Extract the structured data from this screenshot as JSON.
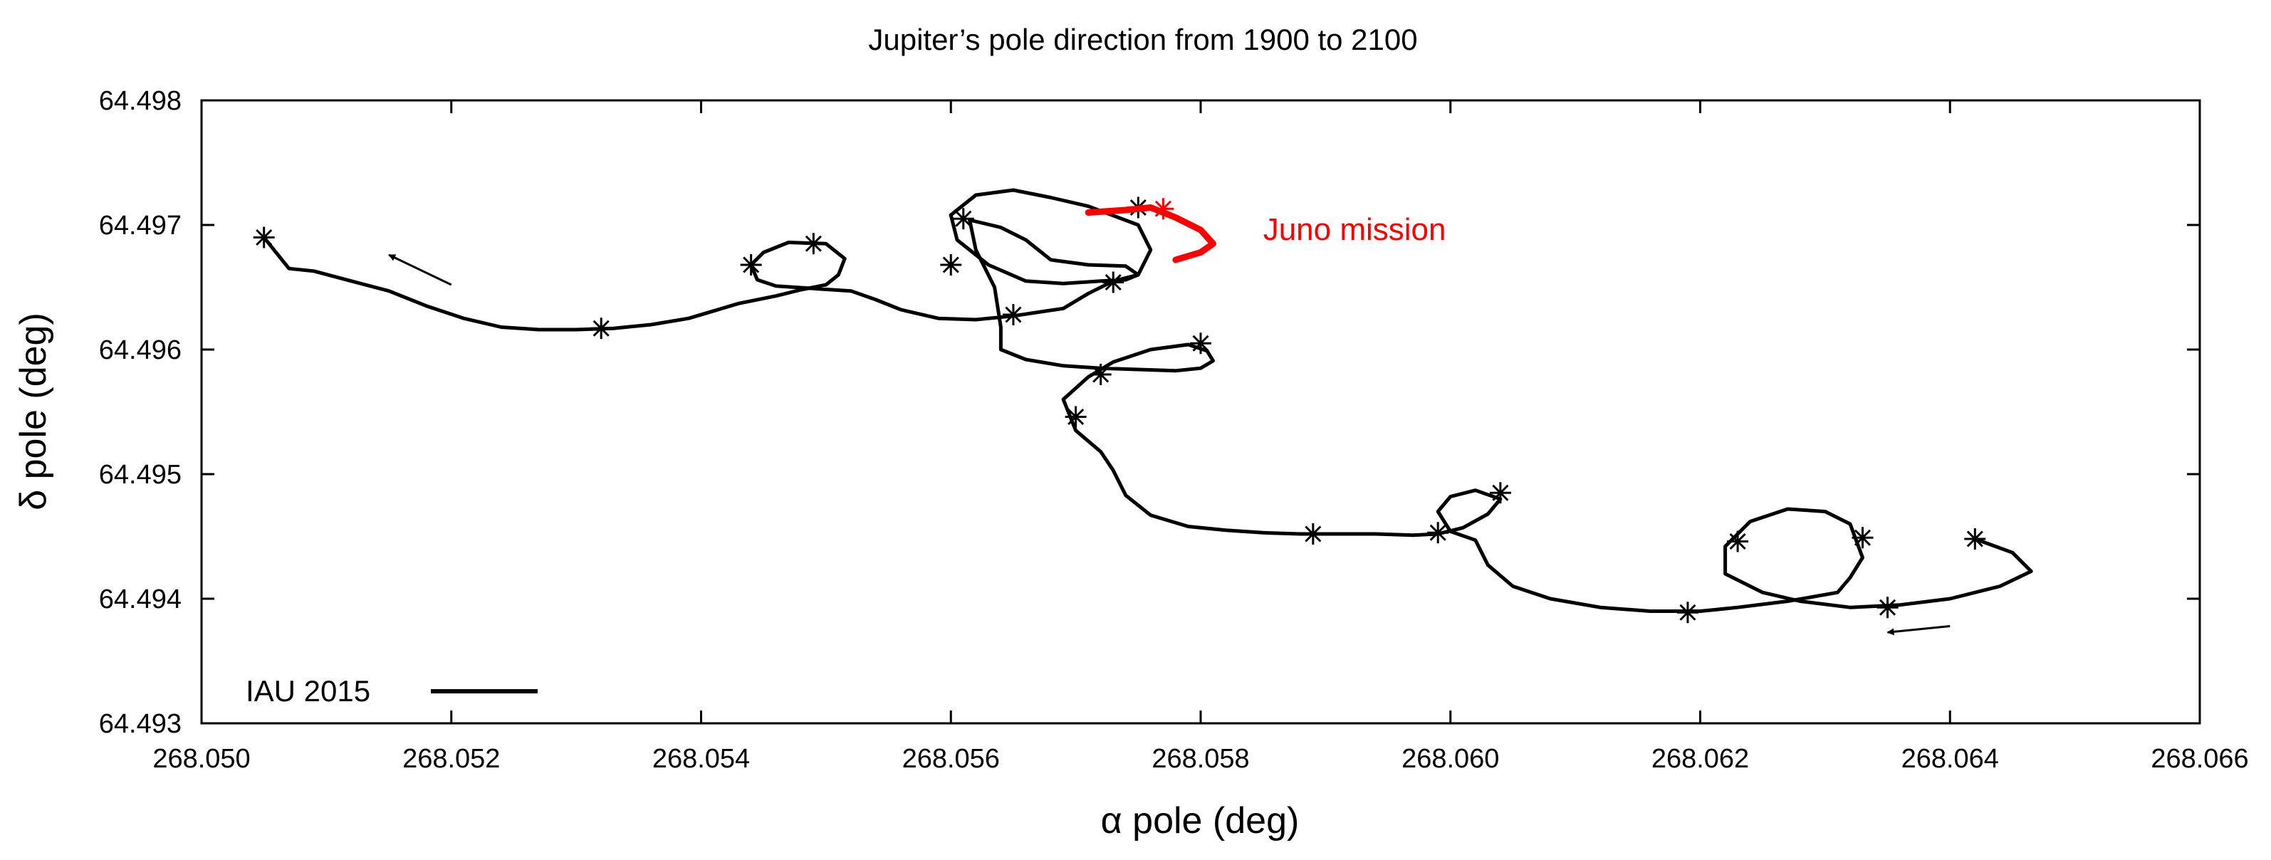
{
  "chart_data": {
    "type": "line",
    "title": "Jupiter’s pole direction from 1900 to 2100",
    "xlabel": "α pole (deg)",
    "ylabel": "δ pole (deg)",
    "xlim": [
      268.05,
      268.066
    ],
    "ylim": [
      64.493,
      64.498
    ],
    "x_ticks": [
      268.05,
      268.052,
      268.054,
      268.056,
      268.058,
      268.06,
      268.062,
      268.064,
      268.066
    ],
    "x_tick_labels": [
      "268.050",
      "268.052",
      "268.054",
      "268.056",
      "268.058",
      "268.060",
      "268.062",
      "268.064",
      "268.066"
    ],
    "y_ticks": [
      64.493,
      64.494,
      64.495,
      64.496,
      64.497,
      64.498
    ],
    "y_tick_labels": [
      "64.493",
      "64.494",
      "64.495",
      "64.496",
      "64.497",
      "64.498"
    ],
    "grid": false,
    "legend_position": "bottom-left",
    "series": [
      {
        "name": "IAU 2015",
        "color": "#000000",
        "line": [
          [
            268.0505,
            64.4969
          ],
          [
            268.0507,
            64.49665
          ],
          [
            268.0509,
            64.49663
          ],
          [
            268.0512,
            64.49655
          ],
          [
            268.0515,
            64.49647
          ],
          [
            268.0518,
            64.49635
          ],
          [
            268.0521,
            64.49625
          ],
          [
            268.0524,
            64.49618
          ],
          [
            268.0527,
            64.49616
          ],
          [
            268.053,
            64.49616
          ],
          [
            268.0533,
            64.49617
          ],
          [
            268.0536,
            64.4962
          ],
          [
            268.0539,
            64.49625
          ],
          [
            268.0541,
            64.49631
          ],
          [
            268.0543,
            64.49637
          ],
          [
            268.0546,
            64.49643
          ],
          [
            268.0548,
            64.49648
          ],
          [
            268.055,
            64.49652
          ],
          [
            268.0551,
            64.4966
          ],
          [
            268.05515,
            64.49673
          ],
          [
            268.055,
            64.49685
          ],
          [
            268.0547,
            64.49686
          ],
          [
            268.0545,
            64.49678
          ],
          [
            268.0544,
            64.49668
          ],
          [
            268.05445,
            64.49656
          ],
          [
            268.0546,
            64.49651
          ],
          [
            268.0549,
            64.49649
          ],
          [
            268.0552,
            64.49647
          ],
          [
            268.0554,
            64.4964
          ],
          [
            268.0556,
            64.49632
          ],
          [
            268.0559,
            64.49625
          ],
          [
            268.0562,
            64.49624
          ],
          [
            268.0565,
            64.49627
          ],
          [
            268.0567,
            64.4963
          ],
          [
            268.0569,
            64.49633
          ],
          [
            268.0571,
            64.49645
          ],
          [
            268.0573,
            64.49655
          ],
          [
            268.0575,
            64.4966
          ],
          [
            268.0576,
            64.4968
          ],
          [
            268.0575,
            64.497
          ],
          [
            268.0571,
            64.49715
          ],
          [
            268.0568,
            64.49722
          ],
          [
            268.0565,
            64.49728
          ],
          [
            268.0562,
            64.49724
          ],
          [
            268.056,
            64.49708
          ],
          [
            268.05605,
            64.49688
          ],
          [
            268.0563,
            64.49668
          ],
          [
            268.0566,
            64.49655
          ],
          [
            268.0569,
            64.49653
          ],
          [
            268.0572,
            64.49655
          ],
          [
            268.0574,
            64.49656
          ],
          [
            268.0575,
            64.4966
          ],
          [
            268.0574,
            64.49667
          ],
          [
            268.0571,
            64.49668
          ],
          [
            268.0568,
            64.49672
          ],
          [
            268.0566,
            64.49688
          ],
          [
            268.0564,
            64.49698
          ],
          [
            268.05615,
            64.49704
          ],
          [
            268.0562,
            64.4968
          ],
          [
            268.05635,
            64.4965
          ],
          [
            268.0564,
            64.49618
          ],
          [
            268.0564,
            64.496
          ],
          [
            268.0566,
            64.49592
          ],
          [
            268.0569,
            64.49587
          ],
          [
            268.0572,
            64.49585
          ],
          [
            268.0575,
            64.49584
          ],
          [
            268.0578,
            64.49583
          ],
          [
            268.058,
            64.49585
          ],
          [
            268.0581,
            64.49591
          ],
          [
            268.05805,
            64.49599
          ],
          [
            268.0579,
            64.49604
          ],
          [
            268.0576,
            64.496
          ],
          [
            268.0573,
            64.4959
          ],
          [
            268.0571,
            64.49578
          ],
          [
            268.0569,
            64.4956
          ],
          [
            268.057,
            64.49535
          ],
          [
            268.0572,
            64.49518
          ],
          [
            268.0573,
            64.49503
          ],
          [
            268.0574,
            64.49483
          ],
          [
            268.0576,
            64.49467
          ],
          [
            268.0579,
            64.49458
          ],
          [
            268.0582,
            64.49455
          ],
          [
            268.0585,
            64.49453
          ],
          [
            268.0588,
            64.49452
          ],
          [
            268.0591,
            64.49452
          ],
          [
            268.0594,
            64.49452
          ],
          [
            268.0597,
            64.49451
          ],
          [
            268.0599,
            64.49452
          ],
          [
            268.0601,
            64.49457
          ],
          [
            268.0603,
            64.49468
          ],
          [
            268.0604,
            64.4948
          ],
          [
            268.0602,
            64.49487
          ],
          [
            268.06,
            64.49482
          ],
          [
            268.0599,
            64.4947
          ],
          [
            268.06,
            64.49454
          ],
          [
            268.0602,
            64.49447
          ],
          [
            268.0603,
            64.49427
          ],
          [
            268.0605,
            64.4941
          ],
          [
            268.0608,
            64.494
          ],
          [
            268.0612,
            64.49393
          ],
          [
            268.0616,
            64.4939
          ],
          [
            268.062,
            64.4939
          ],
          [
            268.0623,
            64.49393
          ],
          [
            268.0627,
            64.49398
          ],
          [
            268.0631,
            64.49405
          ],
          [
            268.0632,
            64.49417
          ],
          [
            268.0633,
            64.49433
          ],
          [
            268.0632,
            64.4946
          ],
          [
            268.063,
            64.4947
          ],
          [
            268.0627,
            64.49472
          ],
          [
            268.0624,
            64.49462
          ],
          [
            268.0622,
            64.49442
          ],
          [
            268.0622,
            64.4942
          ],
          [
            268.0625,
            64.49405
          ],
          [
            268.0628,
            64.49398
          ],
          [
            268.0632,
            64.49393
          ],
          [
            268.0636,
            64.49395
          ],
          [
            268.064,
            64.494
          ],
          [
            268.0644,
            64.4941
          ],
          [
            268.06465,
            64.49422
          ],
          [
            268.0645,
            64.49437
          ],
          [
            268.0642,
            64.49448
          ]
        ],
        "markers": [
          [
            268.0505,
            64.4969
          ],
          [
            268.0532,
            64.49617
          ],
          [
            268.0544,
            64.49668
          ],
          [
            268.0549,
            64.49685
          ],
          [
            268.056,
            64.49668
          ],
          [
            268.0561,
            64.49705
          ],
          [
            268.0565,
            64.49628
          ],
          [
            268.0573,
            64.49654
          ],
          [
            268.0575,
            64.49714
          ],
          [
            268.058,
            64.49605
          ],
          [
            268.0572,
            64.4958
          ],
          [
            268.057,
            64.49546
          ],
          [
            268.0589,
            64.49452
          ],
          [
            268.0599,
            64.49453
          ],
          [
            268.0604,
            64.49485
          ],
          [
            268.0619,
            64.49389
          ],
          [
            268.0623,
            64.49446
          ],
          [
            268.0633,
            64.49449
          ],
          [
            268.0635,
            64.49393
          ],
          [
            268.0642,
            64.49448
          ]
        ]
      },
      {
        "name": "Juno mission",
        "color": "#ff0000",
        "line": [
          [
            268.0571,
            64.4971
          ],
          [
            268.0574,
            64.49712
          ],
          [
            268.0576,
            64.49714
          ],
          [
            268.0578,
            64.49706
          ],
          [
            268.058,
            64.49696
          ],
          [
            268.0581,
            64.49685
          ],
          [
            268.058,
            64.49678
          ],
          [
            268.0578,
            64.49672
          ]
        ],
        "markers": [
          [
            268.0577,
            64.49713
          ]
        ]
      }
    ],
    "annotations": [
      {
        "text": "Juno mission",
        "x": 268.0585,
        "y": 64.49688,
        "color": "#ff0000"
      },
      {
        "type": "arrow",
        "from": [
          268.052,
          64.49652
        ],
        "to": [
          268.0515,
          64.49676
        ]
      },
      {
        "type": "arrow",
        "from": [
          268.064,
          64.49378
        ],
        "to": [
          268.0635,
          64.49373
        ]
      }
    ],
    "legend": {
      "label": "IAU 2015"
    }
  }
}
